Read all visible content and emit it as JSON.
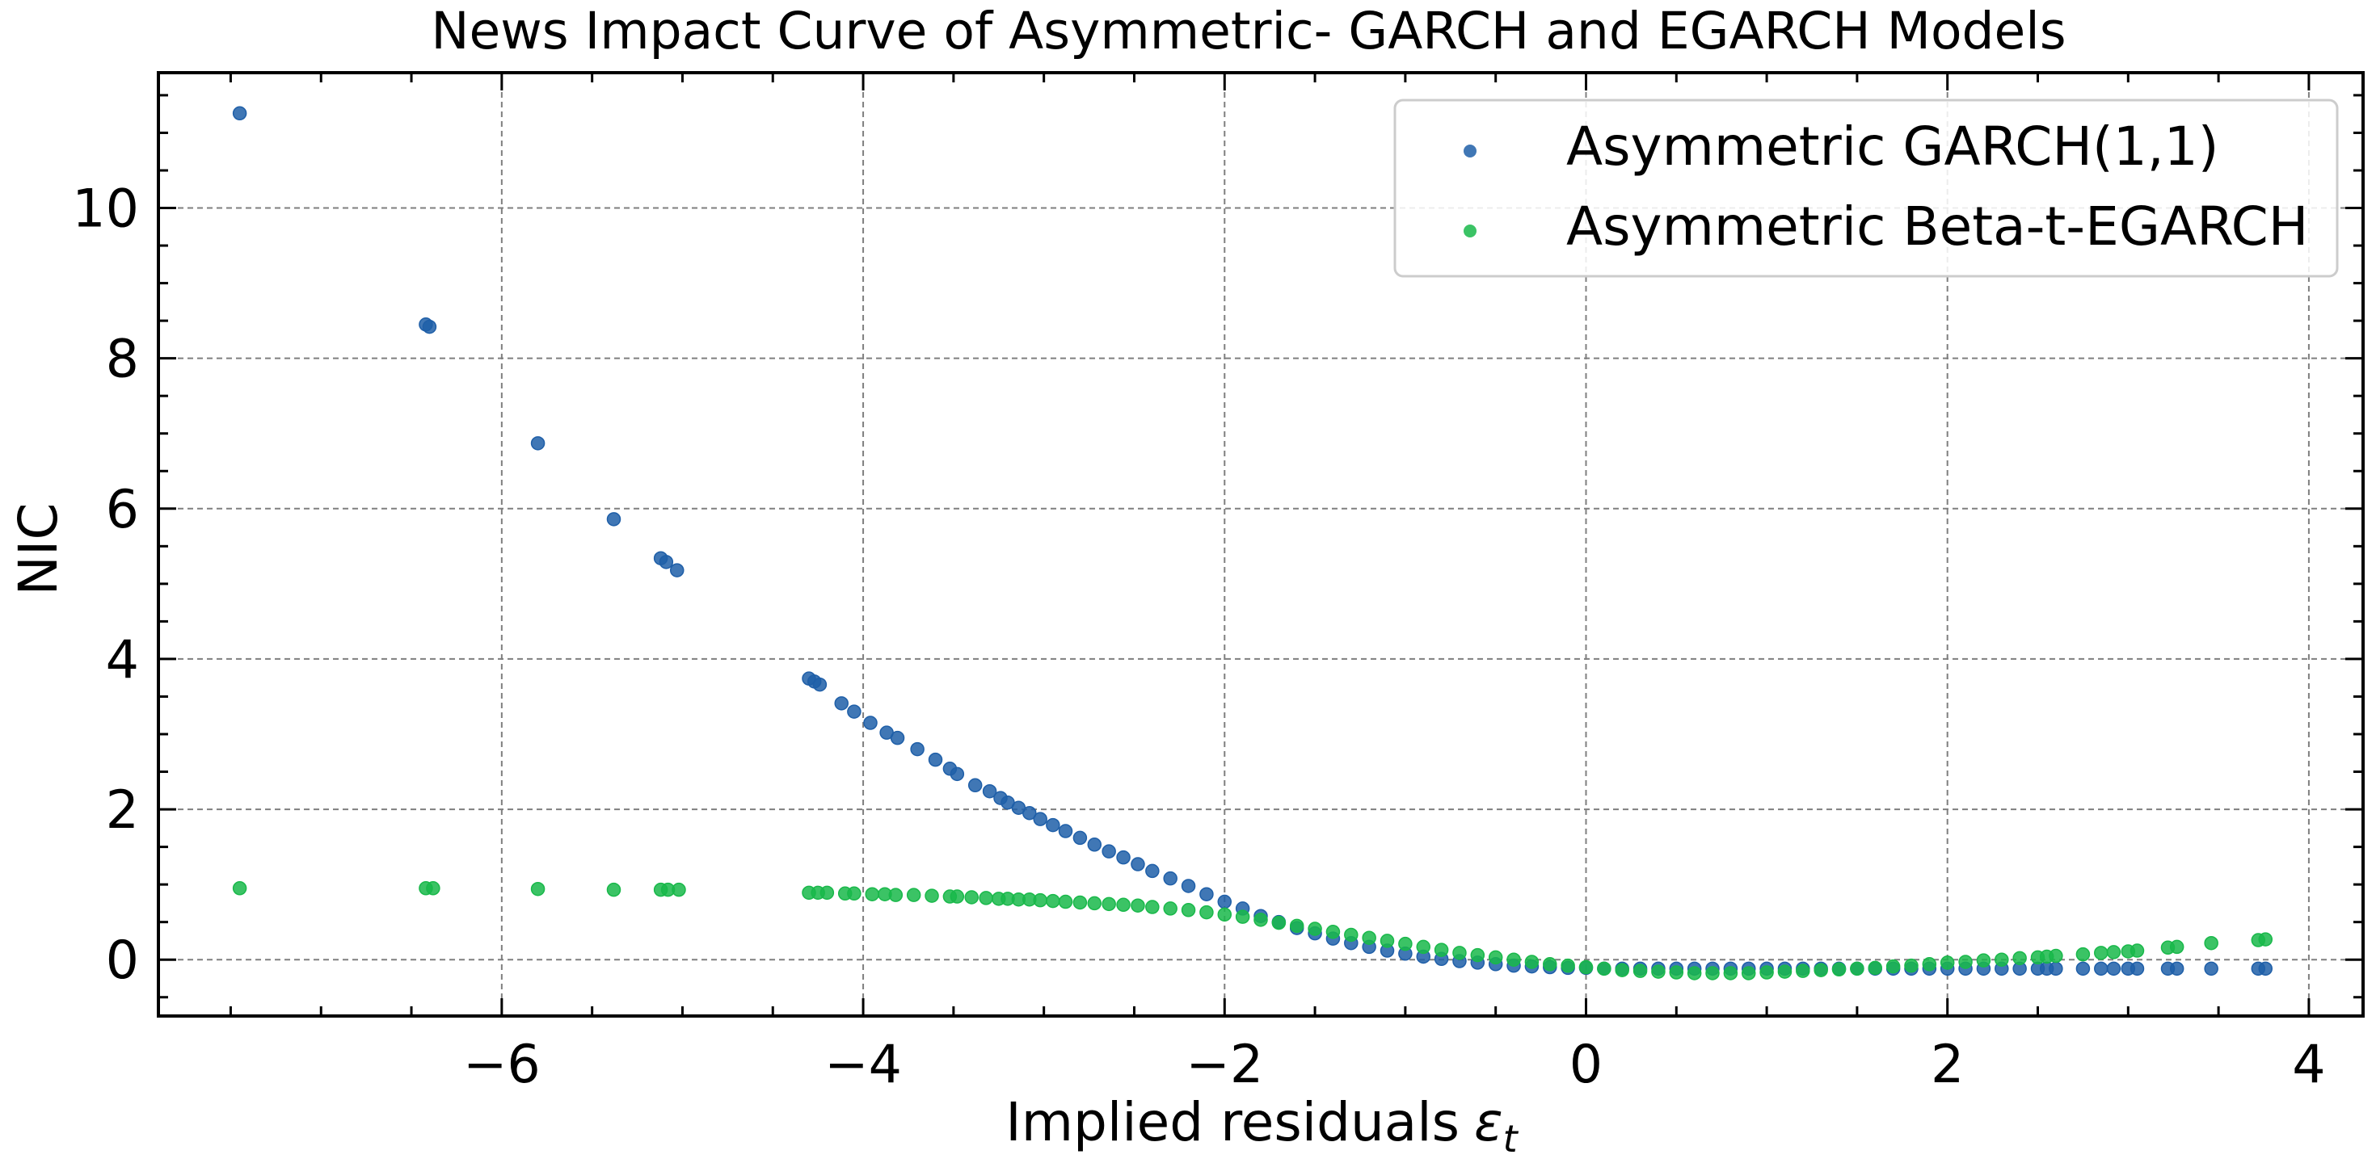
{
  "chart_data": {
    "type": "scatter",
    "title": "News Impact Curve of Asymmetric- GARCH and EGARCH Models",
    "xlabel": "Implied residuals",
    "xlabel_symbol": "ε",
    "xlabel_subscript": "t",
    "ylabel": "NIC",
    "xlim": [
      -7.9,
      4.3
    ],
    "ylim": [
      -0.75,
      11.8
    ],
    "xticks": [
      -6,
      -4,
      -2,
      0,
      2,
      4
    ],
    "xtick_labels": [
      "−6",
      "−4",
      "−2",
      "0",
      "2",
      "4"
    ],
    "yticks": [
      0,
      2,
      4,
      6,
      8,
      10
    ],
    "ytick_labels": [
      "0",
      "2",
      "4",
      "6",
      "8",
      "10"
    ],
    "grid": true,
    "legend_position": "top-right",
    "series": [
      {
        "name": "Asymmetric GARCH(1,1)",
        "color": "#1f5fa8",
        "points": [
          [
            -7.45,
            11.26
          ],
          [
            -6.42,
            8.45
          ],
          [
            -6.4,
            8.42
          ],
          [
            -5.8,
            6.87
          ],
          [
            -5.38,
            5.86
          ],
          [
            -5.12,
            5.34
          ],
          [
            -5.09,
            5.29
          ],
          [
            -5.03,
            5.18
          ],
          [
            -4.3,
            3.74
          ],
          [
            -4.27,
            3.7
          ],
          [
            -4.24,
            3.66
          ],
          [
            -4.12,
            3.41
          ],
          [
            -4.05,
            3.3
          ],
          [
            -3.96,
            3.15
          ],
          [
            -3.87,
            3.02
          ],
          [
            -3.81,
            2.95
          ],
          [
            -3.7,
            2.8
          ],
          [
            -3.6,
            2.66
          ],
          [
            -3.52,
            2.54
          ],
          [
            -3.48,
            2.47
          ],
          [
            -3.38,
            2.32
          ],
          [
            -3.3,
            2.24
          ],
          [
            -3.24,
            2.15
          ],
          [
            -3.2,
            2.09
          ],
          [
            -3.14,
            2.02
          ],
          [
            -3.08,
            1.95
          ],
          [
            -3.02,
            1.87
          ],
          [
            -2.95,
            1.79
          ],
          [
            -2.88,
            1.71
          ],
          [
            -2.8,
            1.62
          ],
          [
            -2.72,
            1.53
          ],
          [
            -2.64,
            1.44
          ],
          [
            -2.56,
            1.36
          ],
          [
            -2.48,
            1.27
          ],
          [
            -2.4,
            1.18
          ],
          [
            -2.3,
            1.08
          ],
          [
            -2.2,
            0.98
          ],
          [
            -2.1,
            0.87
          ],
          [
            -2.0,
            0.77
          ],
          [
            -1.9,
            0.68
          ],
          [
            -1.8,
            0.58
          ],
          [
            -1.7,
            0.5
          ],
          [
            -1.6,
            0.42
          ],
          [
            -1.5,
            0.35
          ],
          [
            -1.4,
            0.28
          ],
          [
            -1.3,
            0.22
          ],
          [
            -1.2,
            0.17
          ],
          [
            -1.1,
            0.12
          ],
          [
            -1.0,
            0.08
          ],
          [
            -0.9,
            0.04
          ],
          [
            -0.8,
            0.01
          ],
          [
            -0.7,
            -0.02
          ],
          [
            -0.6,
            -0.04
          ],
          [
            -0.5,
            -0.06
          ],
          [
            -0.4,
            -0.08
          ],
          [
            -0.3,
            -0.09
          ],
          [
            -0.2,
            -0.1
          ],
          [
            -0.1,
            -0.11
          ],
          [
            0.0,
            -0.11
          ],
          [
            0.1,
            -0.12
          ],
          [
            0.2,
            -0.12
          ],
          [
            0.3,
            -0.12
          ],
          [
            0.4,
            -0.12
          ],
          [
            0.5,
            -0.12
          ],
          [
            0.6,
            -0.12
          ],
          [
            0.7,
            -0.12
          ],
          [
            0.8,
            -0.12
          ],
          [
            0.9,
            -0.12
          ],
          [
            1.0,
            -0.12
          ],
          [
            1.1,
            -0.12
          ],
          [
            1.2,
            -0.12
          ],
          [
            1.3,
            -0.12
          ],
          [
            1.4,
            -0.12
          ],
          [
            1.5,
            -0.12
          ],
          [
            1.6,
            -0.12
          ],
          [
            1.7,
            -0.12
          ],
          [
            1.8,
            -0.12
          ],
          [
            1.9,
            -0.12
          ],
          [
            2.0,
            -0.12
          ],
          [
            2.1,
            -0.12
          ],
          [
            2.2,
            -0.12
          ],
          [
            2.3,
            -0.12
          ],
          [
            2.4,
            -0.12
          ],
          [
            2.5,
            -0.12
          ],
          [
            2.55,
            -0.12
          ],
          [
            2.6,
            -0.12
          ],
          [
            2.75,
            -0.12
          ],
          [
            2.85,
            -0.12
          ],
          [
            2.92,
            -0.12
          ],
          [
            3.0,
            -0.12
          ],
          [
            3.05,
            -0.12
          ],
          [
            3.22,
            -0.12
          ],
          [
            3.27,
            -0.12
          ],
          [
            3.46,
            -0.12
          ],
          [
            3.72,
            -0.12
          ],
          [
            3.76,
            -0.12
          ]
        ]
      },
      {
        "name": "Asymmetric Beta-t-EGARCH",
        "color": "#19b84a",
        "points": [
          [
            -7.45,
            0.95
          ],
          [
            -6.42,
            0.95
          ],
          [
            -6.38,
            0.95
          ],
          [
            -5.8,
            0.94
          ],
          [
            -5.38,
            0.93
          ],
          [
            -5.12,
            0.93
          ],
          [
            -5.08,
            0.93
          ],
          [
            -5.02,
            0.93
          ],
          [
            -4.3,
            0.89
          ],
          [
            -4.25,
            0.89
          ],
          [
            -4.2,
            0.89
          ],
          [
            -4.1,
            0.88
          ],
          [
            -4.05,
            0.88
          ],
          [
            -3.95,
            0.87
          ],
          [
            -3.88,
            0.87
          ],
          [
            -3.82,
            0.86
          ],
          [
            -3.72,
            0.86
          ],
          [
            -3.62,
            0.85
          ],
          [
            -3.52,
            0.84
          ],
          [
            -3.48,
            0.84
          ],
          [
            -3.4,
            0.83
          ],
          [
            -3.32,
            0.82
          ],
          [
            -3.25,
            0.81
          ],
          [
            -3.2,
            0.81
          ],
          [
            -3.14,
            0.8
          ],
          [
            -3.08,
            0.8
          ],
          [
            -3.02,
            0.79
          ],
          [
            -2.95,
            0.78
          ],
          [
            -2.88,
            0.77
          ],
          [
            -2.8,
            0.76
          ],
          [
            -2.72,
            0.75
          ],
          [
            -2.64,
            0.74
          ],
          [
            -2.56,
            0.73
          ],
          [
            -2.48,
            0.72
          ],
          [
            -2.4,
            0.7
          ],
          [
            -2.3,
            0.68
          ],
          [
            -2.2,
            0.66
          ],
          [
            -2.1,
            0.63
          ],
          [
            -2.0,
            0.6
          ],
          [
            -1.9,
            0.57
          ],
          [
            -1.8,
            0.53
          ],
          [
            -1.7,
            0.49
          ],
          [
            -1.6,
            0.45
          ],
          [
            -1.5,
            0.41
          ],
          [
            -1.4,
            0.37
          ],
          [
            -1.3,
            0.33
          ],
          [
            -1.2,
            0.29
          ],
          [
            -1.1,
            0.25
          ],
          [
            -1.0,
            0.21
          ],
          [
            -0.9,
            0.17
          ],
          [
            -0.8,
            0.13
          ],
          [
            -0.7,
            0.09
          ],
          [
            -0.6,
            0.06
          ],
          [
            -0.5,
            0.03
          ],
          [
            -0.4,
            0.0
          ],
          [
            -0.3,
            -0.03
          ],
          [
            -0.2,
            -0.06
          ],
          [
            -0.1,
            -0.08
          ],
          [
            0.0,
            -0.1
          ],
          [
            0.1,
            -0.12
          ],
          [
            0.2,
            -0.14
          ],
          [
            0.3,
            -0.15
          ],
          [
            0.4,
            -0.16
          ],
          [
            0.5,
            -0.17
          ],
          [
            0.6,
            -0.18
          ],
          [
            0.7,
            -0.18
          ],
          [
            0.8,
            -0.18
          ],
          [
            0.9,
            -0.18
          ],
          [
            1.0,
            -0.17
          ],
          [
            1.1,
            -0.16
          ],
          [
            1.2,
            -0.15
          ],
          [
            1.3,
            -0.14
          ],
          [
            1.4,
            -0.13
          ],
          [
            1.5,
            -0.12
          ],
          [
            1.6,
            -0.11
          ],
          [
            1.7,
            -0.09
          ],
          [
            1.8,
            -0.08
          ],
          [
            1.9,
            -0.06
          ],
          [
            2.0,
            -0.04
          ],
          [
            2.1,
            -0.03
          ],
          [
            2.2,
            -0.01
          ],
          [
            2.3,
            0.0
          ],
          [
            2.4,
            0.02
          ],
          [
            2.5,
            0.03
          ],
          [
            2.55,
            0.04
          ],
          [
            2.6,
            0.05
          ],
          [
            2.75,
            0.07
          ],
          [
            2.85,
            0.09
          ],
          [
            2.92,
            0.1
          ],
          [
            3.0,
            0.11
          ],
          [
            3.05,
            0.12
          ],
          [
            3.22,
            0.16
          ],
          [
            3.27,
            0.17
          ],
          [
            3.46,
            0.22
          ],
          [
            3.72,
            0.26
          ],
          [
            3.76,
            0.27
          ]
        ]
      }
    ]
  }
}
